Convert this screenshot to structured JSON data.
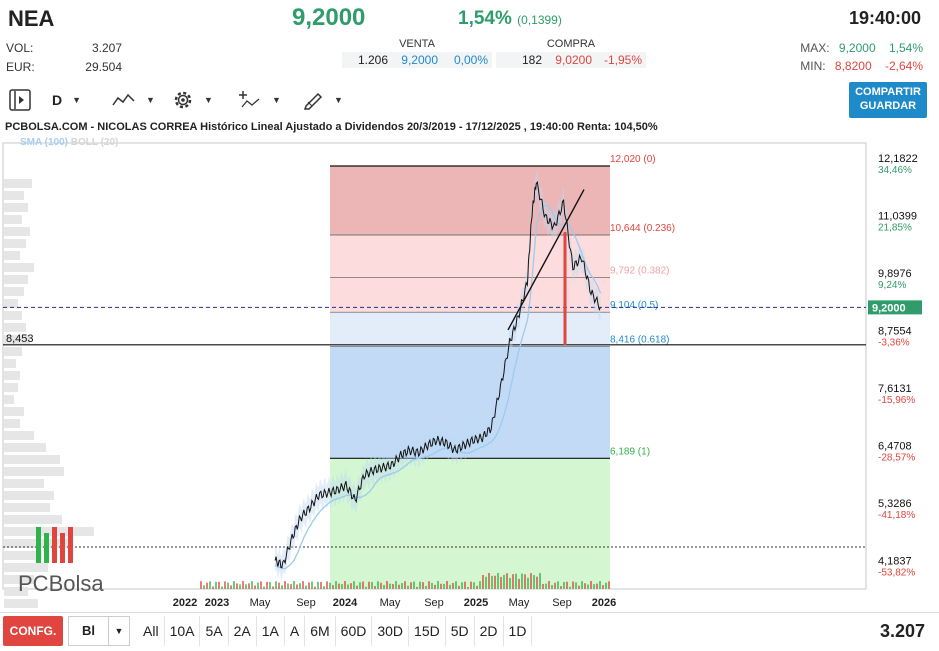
{
  "header": {
    "ticker": "NEA",
    "price": "9,2000",
    "change_pct": "1,54%",
    "change_abs": "(0,1399)",
    "time": "19:40:00",
    "vol_label": "VOL:",
    "vol_value": "3.207",
    "eur_label": "EUR:",
    "eur_value": "29.504",
    "sell_label": "VENTA",
    "sell_qty": "1.206",
    "sell_price": "9,2000",
    "sell_pct": "0,00%",
    "buy_label": "COMPRA",
    "buy_qty": "182",
    "buy_price": "9,0200",
    "buy_pct": "-1,95%",
    "max_label": "MAX:",
    "max_value": "9,2000",
    "max_pct": "1,54%",
    "min_label": "MIN:",
    "min_value": "8,8200",
    "min_pct": "-2,64%"
  },
  "toolbar": {
    "period_label": "D",
    "share_line1": "COMPARTIR",
    "share_line2": "GUARDAR"
  },
  "chart_title": "PCBOLSA.COM - NICOLAS CORREA Histórico Lineal Ajustado a Dividendos 20/3/2019 - 17/12/2025 , 19:40:00 Renta: 104,50%",
  "indicators": {
    "sma": "SMA (100)",
    "boll": "BOLL (20)"
  },
  "logo": {
    "pc": "PC",
    "bolsa": "Bolsa"
  },
  "colors": {
    "up": "#2e9d6b",
    "down": "#e0463f",
    "blue": "#1f8ac9",
    "fib_red": "#e9a9a9",
    "fib_pink": "#fcd6d6",
    "fib_lightblue": "#deeaf8",
    "fib_blue": "#b7d4f5",
    "fib_green": "#cdf5c9"
  },
  "chart_data": {
    "type": "line",
    "series": [
      {
        "x": [
          "2022-12-20",
          "2023-01-15",
          "2023-02-15",
          "2023-03-15",
          "2023-04-15",
          "2023-05-15",
          "2023-06-15",
          "2023-07-15",
          "2023-08-15",
          "2023-09-15",
          "2023-10-15",
          "2023-11-15",
          "2023-12-15",
          "2024-01-15",
          "2024-02-15",
          "2024-03-15",
          "2024-04-15",
          "2024-05-15",
          "2024-06-15",
          "2024-07-15",
          "2024-08-15",
          "2024-09-15",
          "2024-10-15",
          "2024-11-15",
          "2024-12-15",
          "2025-01-15",
          "2025-02-15",
          "2025-03-15",
          "2025-04-15",
          "2025-05-01",
          "2025-05-15",
          "2025-06-15",
          "2025-07-15",
          "2025-08-15",
          "2025-09-15",
          "2025-10-15",
          "2025-11-15",
          "2025-12-17"
        ],
        "y": [
          4.15,
          4.05,
          4.6,
          5.0,
          5.2,
          5.45,
          5.5,
          5.55,
          5.65,
          5.35,
          5.85,
          5.95,
          6.0,
          6.05,
          6.25,
          6.35,
          6.3,
          6.45,
          6.55,
          6.5,
          6.35,
          6.45,
          6.55,
          6.6,
          6.8,
          7.6,
          8.5,
          9.0,
          9.7,
          11.1,
          11.7,
          11.0,
          10.8,
          11.3,
          10.0,
          10.2,
          9.5,
          9.2
        ]
      }
    ],
    "price_ticks": [
      "12,1822",
      "11,0399",
      "9,8976",
      "8,7554",
      "7,6131",
      "6,4708",
      "5,3286",
      "4,1837"
    ],
    "pct_ticks": [
      "34,46%",
      "21,85%",
      "9,24%",
      "-3,36%",
      "-15,96%",
      "-28,57%",
      "-41,18%",
      "-53,82%"
    ],
    "x_ticks": [
      "2022",
      "2023",
      "May",
      "Sep",
      "2024",
      "May",
      "Sep",
      "2025",
      "May",
      "Sep",
      "2026"
    ],
    "fibonacci": [
      {
        "label": "12,020 (0)",
        "price": 12.02
      },
      {
        "label": "10,644 (0.236)",
        "price": 10.644
      },
      {
        "label": "9,792 (0.382)",
        "price": 9.792
      },
      {
        "label": "9,104 (0.5)",
        "price": 9.104
      },
      {
        "label": "8,416 (0.618)",
        "price": 8.416
      },
      {
        "label": "6,189 (1)",
        "price": 6.189
      }
    ],
    "last_price_label": "9,2000",
    "last_price": 9.2,
    "horizontal_line_label": "8,453",
    "horizontal_line": 8.453,
    "ylim": [
      3.9,
      12.4
    ]
  },
  "bottom": {
    "config": "CONFG.",
    "chart_type": "Bl",
    "periods": [
      "All",
      "10A",
      "5A",
      "2A",
      "1A",
      "A",
      "6M",
      "60D",
      "30D",
      "15D",
      "5D",
      "2D",
      "1D"
    ],
    "volume": "3.207"
  }
}
